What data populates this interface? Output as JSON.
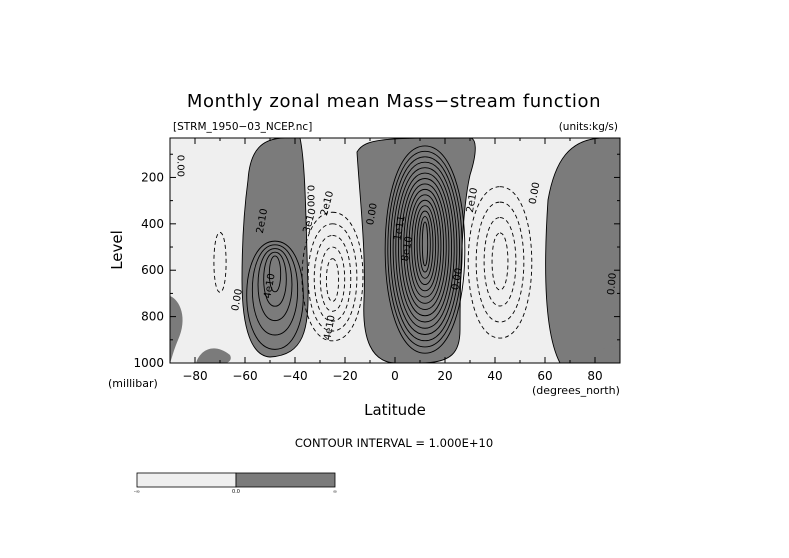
{
  "chart_data": {
    "type": "contour",
    "title": "Monthly zonal mean Mass−stream function",
    "file_label": "[STRM_1950−03_NCEP.nc]",
    "units_label": "(units:kg/s)",
    "xlabel": "Latitude",
    "ylabel": "Level",
    "x_units": "(degrees_north)",
    "y_units": "(millibar)",
    "xlim": [
      -90,
      90
    ],
    "ylim": [
      1000,
      30
    ],
    "y_inverted": true,
    "x_ticks": [
      -80,
      -60,
      -40,
      -20,
      0,
      20,
      40,
      60,
      80
    ],
    "x_tick_labels": [
      "−80",
      "−60",
      "−40",
      "−20",
      "0",
      "20",
      "40",
      "60",
      "80"
    ],
    "y_ticks": [
      200,
      400,
      600,
      800,
      1000
    ],
    "y_tick_labels": [
      "200",
      "400",
      "600",
      "800",
      "1000"
    ],
    "contour_interval_text": "CONTOUR INTERVAL = 1.000E+10",
    "contour_interval": 10000000000,
    "colors": {
      "positive_fill": "#7b7b7b",
      "negative_fill": "#efefef",
      "line": "#000000"
    },
    "cells": [
      {
        "sign": "positive",
        "center_lat": -48,
        "center_level": 570,
        "peak": 50000000000,
        "contours": 5
      },
      {
        "sign": "negative",
        "center_lat": -25,
        "center_level": 650,
        "peak": -50000000000,
        "contours": 5
      },
      {
        "sign": "positive",
        "center_lat": 12,
        "center_level": 480,
        "peak": 150000000000,
        "contours": 15
      },
      {
        "sign": "negative",
        "center_lat": 42,
        "center_level": 560,
        "peak": -40000000000,
        "contours": 4
      },
      {
        "sign": "negative",
        "center_lat": -70,
        "center_level": 560,
        "peak": -10000000000,
        "contours": 1
      }
    ],
    "contour_labels": [
      {
        "text": "0.00",
        "lat": -87,
        "level": 150,
        "angle": 90
      },
      {
        "text": "2e10",
        "lat": -52,
        "level": 390,
        "angle": -80
      },
      {
        "text": "4e10",
        "lat": -49,
        "level": 670,
        "angle": -80
      },
      {
        "text": "0.00",
        "lat": -62,
        "level": 730,
        "angle": -80
      },
      {
        "text": "0.00",
        "lat": -35,
        "level": 280,
        "angle": 90
      },
      {
        "text": "2e10",
        "lat": -26,
        "level": 315,
        "angle": -75
      },
      {
        "text": "3e10",
        "lat": -33,
        "level": 390,
        "angle": -75
      },
      {
        "text": "4e10",
        "lat": -25,
        "level": 850,
        "angle": -80
      },
      {
        "text": "0.00",
        "lat": -8,
        "level": 360,
        "angle": -80
      },
      {
        "text": "1e11",
        "lat": 3,
        "level": 420,
        "angle": -80
      },
      {
        "text": "8e10",
        "lat": 6,
        "level": 510,
        "angle": -80
      },
      {
        "text": "0.00",
        "lat": 26,
        "level": 640,
        "angle": -80
      },
      {
        "text": "2e10",
        "lat": 32,
        "level": 300,
        "angle": -80
      },
      {
        "text": "0.00",
        "lat": 57,
        "level": 270,
        "angle": -80
      },
      {
        "text": "0.00",
        "lat": 88,
        "level": 660,
        "angle": -85
      }
    ],
    "colorbar": {
      "boundaries": [
        "-∞",
        "0.0",
        "∞"
      ],
      "colors": [
        "#efefef",
        "#7b7b7b"
      ]
    }
  }
}
